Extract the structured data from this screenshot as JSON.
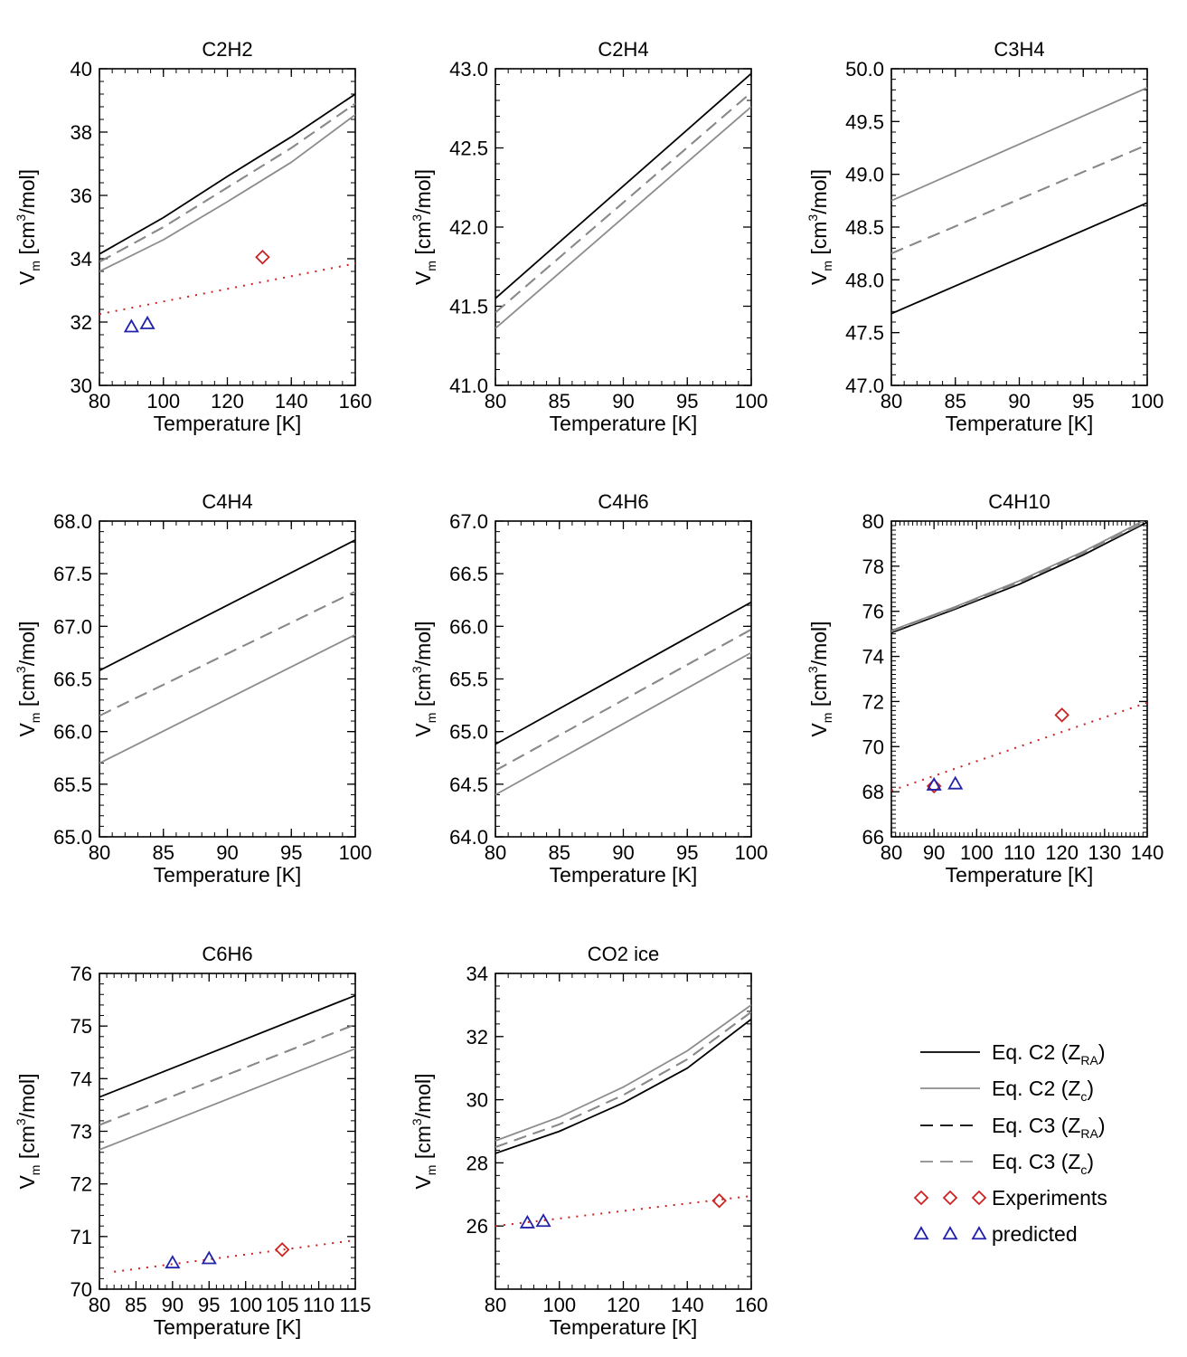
{
  "colors": {
    "black": "#000000",
    "gray": "#8c8c8c",
    "red": "#cc2222",
    "blue": "#2222aa"
  },
  "xlabel": "Temperature [K]",
  "ylabel": {
    "main": "V",
    "sub": "m",
    "units_a": " [cm",
    "sup": "3",
    "units_b": "/mol]"
  },
  "legend": [
    {
      "type": "line",
      "color": "#000000",
      "dash": "solid",
      "label_main": "Eq. C2 (Z",
      "label_sub": "RA",
      "label_end": ")"
    },
    {
      "type": "line",
      "color": "#8c8c8c",
      "dash": "solid",
      "label_main": "Eq. C2 (Z",
      "label_sub": "c",
      "label_end": ")"
    },
    {
      "type": "line",
      "color": "#000000",
      "dash": "dashed",
      "label_main": "Eq. C3 (Z",
      "label_sub": "RA",
      "label_end": ")"
    },
    {
      "type": "line",
      "color": "#8c8c8c",
      "dash": "dashed",
      "label_main": "Eq. C3 (Z",
      "label_sub": "c",
      "label_end": ")"
    },
    {
      "type": "marker",
      "marker": "diamond",
      "color": "#cc2222",
      "label_main": "Experiments",
      "label_sub": "",
      "label_end": ""
    },
    {
      "type": "marker",
      "marker": "triangle",
      "color": "#2222aa",
      "label_main": "predicted",
      "label_sub": "",
      "label_end": ""
    }
  ],
  "chart_data": [
    {
      "type": "line",
      "title": "C2H2",
      "xlabel": "Temperature [K]",
      "ylabel": "Vm [cm3/mol]",
      "xlim": [
        80,
        160
      ],
      "ylim": [
        30,
        40
      ],
      "xticks": [
        80,
        100,
        120,
        140,
        160
      ],
      "yticks": [
        30,
        32,
        34,
        36,
        38,
        40
      ],
      "series": [
        {
          "name": "Eq. C2 (ZRA)",
          "color": "#000000",
          "dash": "solid",
          "x": [
            80,
            100,
            120,
            140,
            160
          ],
          "y": [
            34.15,
            35.3,
            36.6,
            37.85,
            39.2
          ]
        },
        {
          "name": "Eq. C2 (Zc)",
          "color": "#8c8c8c",
          "dash": "solid",
          "x": [
            80,
            100,
            120,
            140,
            160
          ],
          "y": [
            33.6,
            34.6,
            35.8,
            37.05,
            38.55
          ]
        },
        {
          "name": "Eq. C3 (ZRA)",
          "color": "#000000",
          "dash": "dashed",
          "x": [
            80,
            100,
            120,
            140,
            160
          ],
          "y": [
            33.9,
            35.0,
            36.25,
            37.5,
            38.9
          ]
        },
        {
          "name": "Eq. C3 (Zc)",
          "color": "#8c8c8c",
          "dash": "dashed",
          "x": [
            80,
            100,
            120,
            140,
            160
          ],
          "y": [
            33.9,
            35.0,
            36.25,
            37.5,
            38.9
          ]
        },
        {
          "name": "fit",
          "color": "#cc2222",
          "dash": "dotted",
          "x": [
            80,
            160
          ],
          "y": [
            32.25,
            33.85
          ]
        }
      ],
      "experiments": [
        {
          "x": 131,
          "y": 34.05
        }
      ],
      "predicted": [
        {
          "x": 90,
          "y": 31.85
        },
        {
          "x": 95,
          "y": 31.95
        }
      ]
    },
    {
      "type": "line",
      "title": "C2H4",
      "xlabel": "Temperature [K]",
      "ylabel": "Vm [cm3/mol]",
      "xlim": [
        80,
        100
      ],
      "ylim": [
        41.0,
        43.0
      ],
      "xticks": [
        80,
        85,
        90,
        95,
        100
      ],
      "yticks": [
        41.0,
        41.5,
        42.0,
        42.5,
        43.0
      ],
      "yticklabels": [
        "41.0",
        "41.5",
        "42.0",
        "42.5",
        "43.0"
      ],
      "series": [
        {
          "name": "Eq. C2 (ZRA)",
          "color": "#000000",
          "dash": "solid",
          "x": [
            80,
            100
          ],
          "y": [
            41.55,
            42.97
          ]
        },
        {
          "name": "Eq. C2 (Zc)",
          "color": "#8c8c8c",
          "dash": "solid",
          "x": [
            80,
            100
          ],
          "y": [
            41.36,
            42.76
          ]
        },
        {
          "name": "Eq. C3 (ZRA)",
          "color": "#000000",
          "dash": "dashed",
          "x": [
            80,
            100
          ],
          "y": [
            41.46,
            42.85
          ]
        },
        {
          "name": "Eq. C3 (Zc)",
          "color": "#8c8c8c",
          "dash": "dashed",
          "x": [
            80,
            100
          ],
          "y": [
            41.46,
            42.85
          ]
        }
      ],
      "experiments": [],
      "predicted": []
    },
    {
      "type": "line",
      "title": "C3H4",
      "xlabel": "Temperature [K]",
      "ylabel": "Vm [cm3/mol]",
      "xlim": [
        80,
        100
      ],
      "ylim": [
        47.0,
        50.0
      ],
      "xticks": [
        80,
        85,
        90,
        95,
        100
      ],
      "yticks": [
        47.0,
        47.5,
        48.0,
        48.5,
        49.0,
        49.5,
        50.0
      ],
      "yticklabels": [
        "47.0",
        "47.5",
        "48.0",
        "48.5",
        "49.0",
        "49.5",
        "50.0"
      ],
      "series": [
        {
          "name": "Eq. C2 (ZRA)",
          "color": "#000000",
          "dash": "solid",
          "x": [
            80,
            100
          ],
          "y": [
            47.68,
            48.73
          ]
        },
        {
          "name": "Eq. C2 (Zc)",
          "color": "#8c8c8c",
          "dash": "solid",
          "x": [
            80,
            100
          ],
          "y": [
            48.75,
            49.82
          ]
        },
        {
          "name": "Eq. C3 (ZRA)",
          "color": "#000000",
          "dash": "dashed",
          "x": [
            80,
            100
          ],
          "y": [
            48.25,
            49.28
          ]
        },
        {
          "name": "Eq. C3 (Zc)",
          "color": "#8c8c8c",
          "dash": "dashed",
          "x": [
            80,
            100
          ],
          "y": [
            48.25,
            49.28
          ]
        }
      ],
      "experiments": [],
      "predicted": []
    },
    {
      "type": "line",
      "title": "C4H4",
      "xlabel": "Temperature [K]",
      "ylabel": "Vm [cm3/mol]",
      "xlim": [
        80,
        100
      ],
      "ylim": [
        65.0,
        68.0
      ],
      "xticks": [
        80,
        85,
        90,
        95,
        100
      ],
      "yticks": [
        65.0,
        65.5,
        66.0,
        66.5,
        67.0,
        67.5,
        68.0
      ],
      "yticklabels": [
        "65.0",
        "65.5",
        "66.0",
        "66.5",
        "67.0",
        "67.5",
        "68.0"
      ],
      "series": [
        {
          "name": "Eq. C2 (ZRA)",
          "color": "#000000",
          "dash": "solid",
          "x": [
            80,
            100
          ],
          "y": [
            66.58,
            67.82
          ]
        },
        {
          "name": "Eq. C2 (Zc)",
          "color": "#8c8c8c",
          "dash": "solid",
          "x": [
            80,
            100
          ],
          "y": [
            65.7,
            66.92
          ]
        },
        {
          "name": "Eq. C3 (ZRA)",
          "color": "#000000",
          "dash": "dashed",
          "x": [
            80,
            100
          ],
          "y": [
            66.15,
            67.33
          ]
        },
        {
          "name": "Eq. C3 (Zc)",
          "color": "#8c8c8c",
          "dash": "dashed",
          "x": [
            80,
            100
          ],
          "y": [
            66.15,
            67.33
          ]
        }
      ],
      "experiments": [],
      "predicted": []
    },
    {
      "type": "line",
      "title": "C4H6",
      "xlabel": "Temperature [K]",
      "ylabel": "Vm [cm3/mol]",
      "xlim": [
        80,
        100
      ],
      "ylim": [
        64.0,
        67.0
      ],
      "xticks": [
        80,
        85,
        90,
        95,
        100
      ],
      "yticks": [
        64.0,
        64.5,
        65.0,
        65.5,
        66.0,
        66.5,
        67.0
      ],
      "yticklabels": [
        "64.0",
        "64.5",
        "65.0",
        "65.5",
        "66.0",
        "66.5",
        "67.0"
      ],
      "series": [
        {
          "name": "Eq. C2 (ZRA)",
          "color": "#000000",
          "dash": "solid",
          "x": [
            80,
            100
          ],
          "y": [
            64.88,
            66.23
          ]
        },
        {
          "name": "Eq. C2 (Zc)",
          "color": "#8c8c8c",
          "dash": "solid",
          "x": [
            80,
            100
          ],
          "y": [
            64.4,
            65.75
          ]
        },
        {
          "name": "Eq. C3 (ZRA)",
          "color": "#000000",
          "dash": "dashed",
          "x": [
            80,
            100
          ],
          "y": [
            64.63,
            65.97
          ]
        },
        {
          "name": "Eq. C3 (Zc)",
          "color": "#8c8c8c",
          "dash": "dashed",
          "x": [
            80,
            100
          ],
          "y": [
            64.63,
            65.97
          ]
        }
      ],
      "experiments": [],
      "predicted": []
    },
    {
      "type": "line",
      "title": "C4H10",
      "xlabel": "Temperature [K]",
      "ylabel": "Vm [cm3/mol]",
      "xlim": [
        80,
        140
      ],
      "ylim": [
        66,
        80
      ],
      "xticks": [
        80,
        90,
        100,
        110,
        120,
        130,
        140
      ],
      "yticks": [
        66,
        68,
        70,
        72,
        74,
        76,
        78,
        80
      ],
      "dense_minor": true,
      "series": [
        {
          "name": "Eq. C2 (ZRA)",
          "color": "#000000",
          "dash": "solid",
          "x": [
            80,
            95,
            110,
            125,
            140
          ],
          "y": [
            75.05,
            76.1,
            77.2,
            78.5,
            79.95
          ]
        },
        {
          "name": "Eq. C2 (Zc)",
          "color": "#8c8c8c",
          "dash": "solid",
          "x": [
            80,
            95,
            110,
            125,
            140
          ],
          "y": [
            75.15,
            76.2,
            77.35,
            78.65,
            80.1
          ]
        },
        {
          "name": "Eq. C3 (ZRA)",
          "color": "#000000",
          "dash": "dashed",
          "x": [
            80,
            95,
            110,
            125,
            140
          ],
          "y": [
            75.1,
            76.15,
            77.27,
            78.57,
            80.0
          ]
        },
        {
          "name": "Eq. C3 (Zc)",
          "color": "#8c8c8c",
          "dash": "dashed",
          "x": [
            80,
            95,
            110,
            125,
            140
          ],
          "y": [
            75.1,
            76.15,
            77.27,
            78.57,
            80.0
          ]
        },
        {
          "name": "fit",
          "color": "#cc2222",
          "dash": "dotted",
          "x": [
            80,
            140
          ],
          "y": [
            68.05,
            71.95
          ]
        }
      ],
      "experiments": [
        {
          "x": 90,
          "y": 68.25
        },
        {
          "x": 120,
          "y": 71.4
        }
      ],
      "predicted": [
        {
          "x": 90,
          "y": 68.3
        },
        {
          "x": 95,
          "y": 68.35
        }
      ]
    },
    {
      "type": "line",
      "title": "C6H6",
      "xlabel": "Temperature [K]",
      "ylabel": "Vm [cm3/mol]",
      "xlim": [
        80,
        115
      ],
      "ylim": [
        70,
        76
      ],
      "xticks": [
        80,
        85,
        90,
        95,
        100,
        105,
        110,
        115
      ],
      "yticks": [
        70,
        71,
        72,
        73,
        74,
        75,
        76
      ],
      "xticklabels": [
        "80",
        "85",
        "90",
        "95",
        "100",
        "105",
        "110",
        "115"
      ],
      "series": [
        {
          "name": "Eq. C2 (ZRA)",
          "color": "#000000",
          "dash": "solid",
          "x": [
            80,
            115
          ],
          "y": [
            73.65,
            75.58
          ]
        },
        {
          "name": "Eq. C2 (Zc)",
          "color": "#8c8c8c",
          "dash": "solid",
          "x": [
            80,
            115
          ],
          "y": [
            72.65,
            74.57
          ]
        },
        {
          "name": "Eq. C3 (ZRA)",
          "color": "#000000",
          "dash": "dashed",
          "x": [
            80,
            115
          ],
          "y": [
            73.12,
            75.03
          ]
        },
        {
          "name": "Eq. C3 (Zc)",
          "color": "#8c8c8c",
          "dash": "dashed",
          "x": [
            80,
            115
          ],
          "y": [
            73.12,
            75.03
          ]
        },
        {
          "name": "fit",
          "color": "#cc2222",
          "dash": "dotted",
          "x": [
            82,
            115
          ],
          "y": [
            70.33,
            70.93
          ]
        }
      ],
      "experiments": [
        {
          "x": 105,
          "y": 70.75
        }
      ],
      "predicted": [
        {
          "x": 90,
          "y": 70.5
        },
        {
          "x": 95,
          "y": 70.58
        }
      ]
    },
    {
      "type": "line",
      "title": "CO2 ice",
      "xlabel": "Temperature [K]",
      "ylabel": "Vm [cm3/mol]",
      "xlim": [
        80,
        160
      ],
      "ylim": [
        24,
        34
      ],
      "xticks": [
        80,
        100,
        120,
        140,
        160
      ],
      "yticks": [
        26,
        28,
        30,
        32,
        34
      ],
      "series": [
        {
          "name": "Eq. C2 (ZRA)",
          "color": "#000000",
          "dash": "solid",
          "x": [
            80,
            100,
            120,
            140,
            160
          ],
          "y": [
            28.3,
            29.0,
            29.9,
            31.0,
            32.55
          ]
        },
        {
          "name": "Eq. C2 (Zc)",
          "color": "#8c8c8c",
          "dash": "solid",
          "x": [
            80,
            100,
            120,
            140,
            160
          ],
          "y": [
            28.7,
            29.45,
            30.4,
            31.55,
            33.0
          ]
        },
        {
          "name": "Eq. C3 (ZRA)",
          "color": "#000000",
          "dash": "dashed",
          "x": [
            80,
            100,
            120,
            140,
            160
          ],
          "y": [
            28.5,
            29.22,
            30.15,
            31.28,
            32.78
          ]
        },
        {
          "name": "Eq. C3 (Zc)",
          "color": "#8c8c8c",
          "dash": "dashed",
          "x": [
            80,
            100,
            120,
            140,
            160
          ],
          "y": [
            28.5,
            29.22,
            30.15,
            31.28,
            32.78
          ]
        },
        {
          "name": "fit",
          "color": "#cc2222",
          "dash": "dotted",
          "x": [
            80,
            160
          ],
          "y": [
            26.0,
            26.95
          ]
        }
      ],
      "experiments": [
        {
          "x": 150,
          "y": 26.8
        }
      ],
      "predicted": [
        {
          "x": 90,
          "y": 26.1
        },
        {
          "x": 95,
          "y": 26.15
        }
      ]
    }
  ]
}
